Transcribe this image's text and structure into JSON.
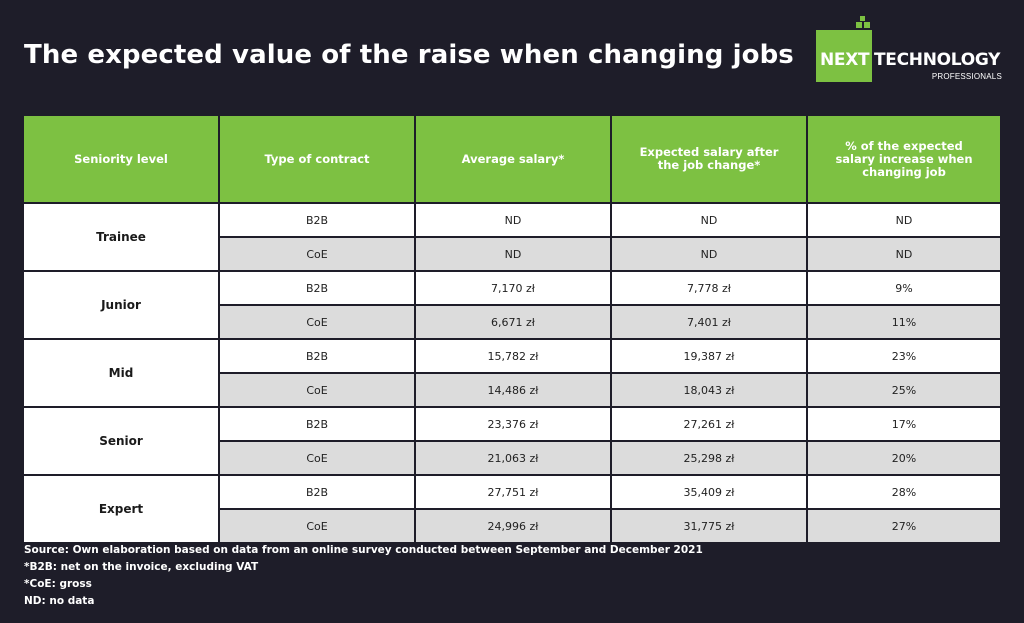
{
  "title": "The expected value of the raise when changing jobs",
  "logo": {
    "word1": "NEXT",
    "word2": "TECHNOLOGY",
    "sub": "PROFESSIONALS",
    "accent": "#7dc142"
  },
  "colors": {
    "background": "#1e1d29",
    "header": "#7dc142",
    "row_light": "#ffffff",
    "row_grey": "#dcdcdc"
  },
  "chart_data": {
    "type": "table",
    "title": "The expected value of the raise when changing jobs",
    "columns": [
      "Seniority level",
      "Type of contract",
      "Average salary*",
      "Expected salary after the job change*",
      "% of the expected salary increase when changing job"
    ],
    "groups": [
      {
        "level": "Trainee",
        "rows": [
          {
            "contract": "B2B",
            "avg": "ND",
            "expected": "ND",
            "pct": "ND"
          },
          {
            "contract": "CoE",
            "avg": "ND",
            "expected": "ND",
            "pct": "ND"
          }
        ]
      },
      {
        "level": "Junior",
        "rows": [
          {
            "contract": "B2B",
            "avg": "7,170 zł",
            "expected": "7,778 zł",
            "pct": "9%"
          },
          {
            "contract": "CoE",
            "avg": "6,671 zł",
            "expected": "7,401 zł",
            "pct": "11%"
          }
        ]
      },
      {
        "level": "Mid",
        "rows": [
          {
            "contract": "B2B",
            "avg": "15,782 zł",
            "expected": "19,387 zł",
            "pct": "23%"
          },
          {
            "contract": "CoE",
            "avg": "14,486 zł",
            "expected": "18,043 zł",
            "pct": "25%"
          }
        ]
      },
      {
        "level": "Senior",
        "rows": [
          {
            "contract": "B2B",
            "avg": "23,376 zł",
            "expected": "27,261 zł",
            "pct": "17%"
          },
          {
            "contract": "CoE",
            "avg": "21,063 zł",
            "expected": "25,298 zł",
            "pct": "20%"
          }
        ]
      },
      {
        "level": "Expert",
        "rows": [
          {
            "contract": "B2B",
            "avg": "27,751 zł",
            "expected": "35,409 zł",
            "pct": "28%"
          },
          {
            "contract": "CoE",
            "avg": "24,996 zł",
            "expected": "31,775 zł",
            "pct": "27%"
          }
        ]
      }
    ]
  },
  "notes": {
    "source": "Source: Own elaboration based on data from an online survey conducted between September and December 2021",
    "b2b": "*B2B: net on the invoice, excluding VAT",
    "coe": "*CoE: gross",
    "nd": "ND: no data"
  }
}
